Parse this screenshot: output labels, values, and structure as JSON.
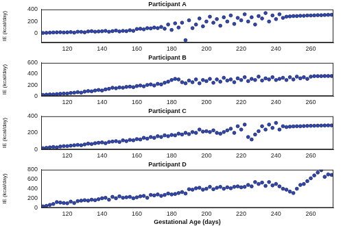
{
  "chart_data": [
    {
      "type": "scatter",
      "title": "Participant A",
      "y_label": "IE (kcal/day)",
      "x": [
        106,
        108,
        110,
        112,
        114,
        116,
        118,
        120,
        122,
        124,
        126,
        128,
        130,
        132,
        134,
        136,
        138,
        140,
        142,
        144,
        146,
        148,
        150,
        152,
        154,
        156,
        158,
        160,
        162,
        164,
        166,
        168,
        170,
        172,
        174,
        176,
        178,
        180,
        182,
        184,
        186,
        188,
        190,
        192,
        194,
        196,
        198,
        200,
        202,
        204,
        206,
        208,
        210,
        212,
        214,
        216,
        218,
        220,
        222,
        224,
        226,
        228,
        230,
        232,
        234,
        236,
        238,
        240,
        242,
        244,
        246,
        248,
        250,
        252,
        254,
        256,
        258,
        260,
        262,
        264,
        266,
        268,
        270,
        272
      ],
      "values": [
        10,
        12,
        15,
        18,
        20,
        22,
        18,
        20,
        25,
        15,
        30,
        28,
        20,
        35,
        40,
        30,
        35,
        38,
        45,
        30,
        40,
        50,
        35,
        45,
        40,
        55,
        45,
        75,
        80,
        70,
        90,
        85,
        100,
        90,
        110,
        80,
        150,
        60,
        170,
        100,
        180,
        -110,
        220,
        90,
        150,
        250,
        120,
        200,
        280,
        180,
        240,
        130,
        270,
        200,
        300,
        160,
        260,
        220,
        320,
        200,
        270,
        150,
        290,
        250,
        340,
        200,
        300,
        240,
        320,
        260,
        280,
        285,
        290,
        290,
        295,
        295,
        300,
        300,
        302,
        305,
        305,
        308,
        310,
        312
      ],
      "color": "#3047b0",
      "marker": "circle",
      "grid": false,
      "xlim": [
        105,
        273
      ],
      "xticks": [
        120,
        140,
        160,
        180,
        200,
        220,
        240,
        260
      ],
      "ylim": [
        -150,
        400
      ],
      "yticks": [
        0,
        200,
        400
      ]
    },
    {
      "type": "scatter",
      "title": "Participant B",
      "y_label": "IE (kcal/day)",
      "x": [
        106,
        108,
        110,
        112,
        114,
        116,
        118,
        120,
        122,
        124,
        126,
        128,
        130,
        132,
        134,
        136,
        138,
        140,
        142,
        144,
        146,
        148,
        150,
        152,
        154,
        156,
        158,
        160,
        162,
        164,
        166,
        168,
        170,
        172,
        174,
        176,
        178,
        180,
        182,
        184,
        186,
        188,
        190,
        192,
        194,
        196,
        198,
        200,
        202,
        204,
        206,
        208,
        210,
        212,
        214,
        216,
        218,
        220,
        222,
        224,
        226,
        228,
        230,
        232,
        234,
        236,
        238,
        240,
        242,
        244,
        246,
        248,
        250,
        252,
        254,
        256,
        258,
        260,
        262,
        264,
        266,
        268,
        270,
        272
      ],
      "values": [
        20,
        25,
        30,
        30,
        35,
        40,
        45,
        45,
        55,
        60,
        70,
        60,
        80,
        90,
        85,
        100,
        110,
        100,
        120,
        130,
        150,
        140,
        155,
        150,
        165,
        170,
        160,
        180,
        190,
        175,
        200,
        210,
        190,
        220,
        210,
        240,
        260,
        290,
        310,
        300,
        250,
        230,
        280,
        250,
        300,
        230,
        290,
        270,
        310,
        240,
        300,
        260,
        330,
        280,
        300,
        250,
        320,
        290,
        340,
        270,
        310,
        290,
        350,
        280,
        320,
        300,
        340,
        290,
        310,
        330,
        290,
        340,
        300,
        350,
        320,
        340,
        310,
        350,
        360,
        360,
        360,
        362,
        362,
        362
      ],
      "color": "#3047b0",
      "marker": "circle",
      "grid": false,
      "xlim": [
        105,
        273
      ],
      "xticks": [
        120,
        140,
        160,
        180,
        200,
        220,
        240,
        260
      ],
      "ylim": [
        0,
        600
      ],
      "yticks": [
        0,
        200,
        400,
        600
      ]
    },
    {
      "type": "scatter",
      "title": "Participant C",
      "y_label": "IE (kcal/day)",
      "x": [
        106,
        108,
        110,
        112,
        114,
        116,
        118,
        120,
        122,
        124,
        126,
        128,
        130,
        132,
        134,
        136,
        138,
        140,
        142,
        144,
        146,
        148,
        150,
        152,
        154,
        156,
        158,
        160,
        162,
        164,
        166,
        168,
        170,
        172,
        174,
        176,
        178,
        180,
        182,
        184,
        186,
        188,
        190,
        192,
        194,
        196,
        198,
        200,
        202,
        204,
        206,
        208,
        210,
        212,
        214,
        216,
        218,
        220,
        222,
        224,
        226,
        228,
        230,
        232,
        234,
        236,
        238,
        240,
        242,
        244,
        246,
        248,
        250,
        252,
        254,
        256,
        258,
        260,
        262,
        264,
        266,
        268,
        270,
        272
      ],
      "values": [
        15,
        20,
        25,
        30,
        25,
        35,
        40,
        40,
        45,
        50,
        55,
        50,
        60,
        70,
        65,
        75,
        80,
        85,
        75,
        90,
        95,
        100,
        90,
        110,
        100,
        115,
        110,
        125,
        120,
        140,
        130,
        150,
        140,
        160,
        150,
        170,
        160,
        175,
        170,
        190,
        180,
        200,
        185,
        210,
        200,
        240,
        215,
        220,
        210,
        230,
        200,
        190,
        210,
        230,
        250,
        200,
        280,
        240,
        300,
        150,
        120,
        180,
        220,
        280,
        240,
        300,
        260,
        320,
        240,
        280,
        270,
        275,
        278,
        280,
        280,
        282,
        284,
        285,
        286,
        287,
        288,
        289,
        290,
        290
      ],
      "color": "#3047b0",
      "marker": "circle",
      "grid": false,
      "xlim": [
        105,
        273
      ],
      "xticks": [
        120,
        140,
        160,
        180,
        200,
        220,
        240,
        260
      ],
      "ylim": [
        0,
        400
      ],
      "yticks": [
        0,
        200,
        400
      ]
    },
    {
      "type": "scatter",
      "title": "Participant D",
      "y_label": "IE (kcal/day)",
      "x_label": "Gestational Age (days)",
      "x": [
        106,
        108,
        110,
        112,
        114,
        116,
        118,
        120,
        122,
        124,
        126,
        128,
        130,
        132,
        134,
        136,
        138,
        140,
        142,
        144,
        146,
        148,
        150,
        152,
        154,
        156,
        158,
        160,
        162,
        164,
        166,
        168,
        170,
        172,
        174,
        176,
        178,
        180,
        182,
        184,
        186,
        188,
        190,
        192,
        194,
        196,
        198,
        200,
        202,
        204,
        206,
        208,
        210,
        212,
        214,
        216,
        218,
        220,
        222,
        224,
        226,
        228,
        230,
        232,
        234,
        236,
        238,
        240,
        242,
        244,
        246,
        248,
        250,
        252,
        254,
        256,
        258,
        260,
        262,
        264,
        266,
        268,
        270,
        272
      ],
      "values": [
        30,
        40,
        60,
        80,
        120,
        110,
        100,
        95,
        130,
        100,
        140,
        150,
        160,
        150,
        170,
        160,
        180,
        200,
        210,
        170,
        230,
        200,
        240,
        210,
        220,
        230,
        200,
        220,
        240,
        250,
        210,
        270,
        260,
        280,
        250,
        270,
        300,
        280,
        290,
        310,
        330,
        300,
        390,
        380,
        410,
        420,
        380,
        400,
        440,
        390,
        420,
        440,
        400,
        430,
        410,
        440,
        450,
        430,
        440,
        480,
        450,
        540,
        500,
        530,
        460,
        540,
        470,
        500,
        450,
        400,
        380,
        340,
        310,
        400,
        480,
        500,
        560,
        620,
        680,
        740,
        790,
        650,
        700,
        690
      ],
      "color": "#3047b0",
      "marker": "circle",
      "grid": false,
      "xlim": [
        105,
        273
      ],
      "xticks": [
        120,
        140,
        160,
        180,
        200,
        220,
        240,
        260
      ],
      "ylim": [
        0,
        800
      ],
      "yticks": [
        0,
        200,
        400,
        600,
        800
      ]
    }
  ]
}
